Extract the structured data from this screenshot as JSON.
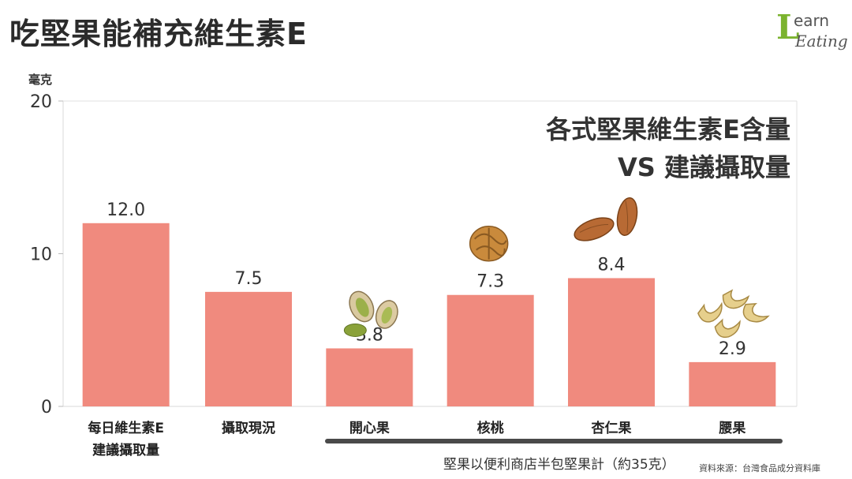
{
  "page": {
    "title": "吃堅果能補充維生素E"
  },
  "logo": {
    "line1_initial": "L",
    "line1_rest": "earn",
    "line2": "Eating"
  },
  "chart_data": {
    "type": "bar",
    "title": "各式堅果維生素E含量",
    "subtitle": "VS 建議攝取量",
    "ylabel": "毫克",
    "xlabel": "",
    "ylim": [
      0,
      20
    ],
    "yticks": [
      0,
      10,
      20
    ],
    "grid": false,
    "categories": [
      {
        "line1": "每日維生素E",
        "line2": "建議攝取量"
      },
      {
        "line1": "攝取現況",
        "line2": ""
      },
      {
        "line1": "開心果",
        "line2": ""
      },
      {
        "line1": "核桃",
        "line2": ""
      },
      {
        "line1": "杏仁果",
        "line2": ""
      },
      {
        "line1": "腰果",
        "line2": ""
      }
    ],
    "values": [
      12.0,
      7.5,
      3.8,
      7.3,
      8.4,
      2.9
    ],
    "value_labels": [
      "12.0",
      "7.5",
      "3.8",
      "7.3",
      "8.4",
      "2.9"
    ],
    "bar_color": "#f08a7e",
    "nut_illustrations": [
      "",
      "",
      "pistachio",
      "walnut",
      "almond",
      "cashew"
    ],
    "annotation": "堅果以便利商店半包堅果計（約35克）",
    "source": "資料來源：台灣食品成分資料庫"
  }
}
